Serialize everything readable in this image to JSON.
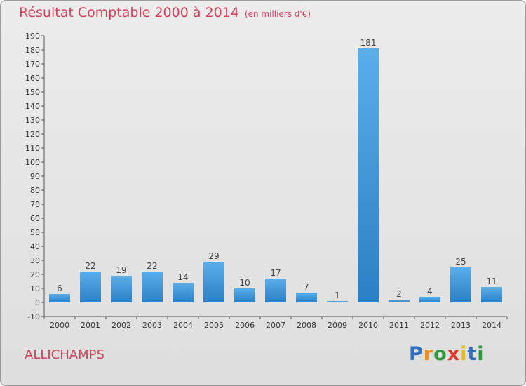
{
  "header": {
    "title": "Résultat Comptable 2000 à 2014",
    "unit": "(en milliers d'€)"
  },
  "commune": "ALLICHAMPS",
  "logo": {
    "text": "Proxiti",
    "letters": [
      "P",
      "r",
      "o",
      "x",
      "i",
      "t",
      "i"
    ],
    "colors": [
      "#2f6fc0",
      "#f08a16",
      "#2f9a3a",
      "#d83a2a",
      "#e8b81e",
      "#2f6fc0",
      "#2f9a3a"
    ]
  },
  "chart_data": {
    "type": "bar",
    "categories": [
      "2000",
      "2001",
      "2002",
      "2003",
      "2004",
      "2005",
      "2006",
      "2007",
      "2008",
      "2009",
      "2010",
      "2011",
      "2012",
      "2013",
      "2014"
    ],
    "values": [
      6,
      22,
      19,
      22,
      14,
      29,
      10,
      17,
      7,
      1,
      181,
      2,
      4,
      25,
      11
    ],
    "ylim": [
      -10,
      190
    ],
    "yticks": [
      -10,
      0,
      10,
      20,
      30,
      40,
      50,
      60,
      70,
      80,
      90,
      100,
      110,
      120,
      130,
      140,
      150,
      160,
      170,
      180,
      190
    ],
    "grid": false,
    "colors": {
      "bar_light": "#5aaeea",
      "bar_dark": "#2b7fc4",
      "axis": "#555555"
    }
  }
}
